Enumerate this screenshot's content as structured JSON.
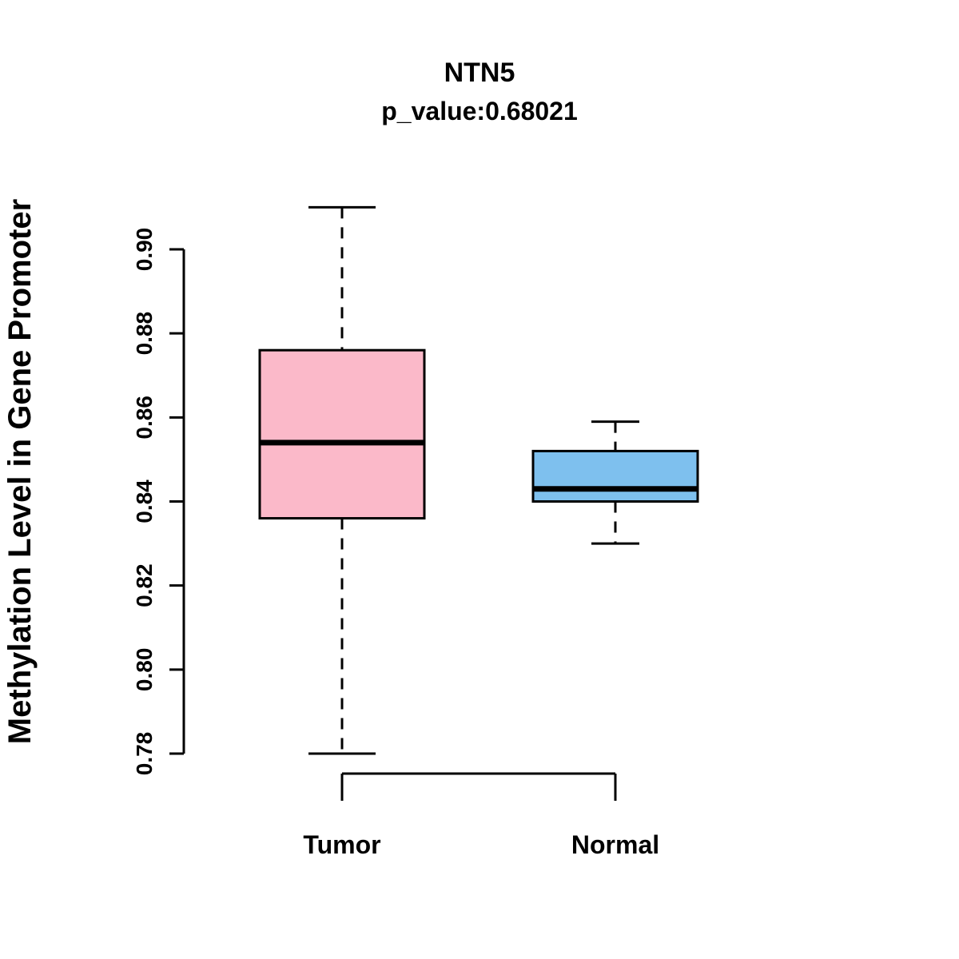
{
  "title": "NTN5",
  "subtitle": "p_value:0.68021",
  "ylabel": "Methylation Level in Gene Promoter",
  "chart_data": {
    "type": "boxplot",
    "title": "NTN5",
    "subtitle": "p_value:0.68021",
    "ylabel": "Methylation Level in Gene Promoter",
    "xlabel": "",
    "categories": [
      "Tumor",
      "Normal"
    ],
    "yticks": [
      0.78,
      0.8,
      0.82,
      0.84,
      0.86,
      0.88,
      0.9
    ],
    "ylim": [
      0.775,
      0.915
    ],
    "grid": false,
    "legend": "none",
    "series": [
      {
        "name": "Tumor",
        "min": 0.78,
        "q1": 0.836,
        "median": 0.854,
        "q3": 0.876,
        "max": 0.91,
        "color": "#FBB9C9"
      },
      {
        "name": "Normal",
        "min": 0.83,
        "q1": 0.84,
        "median": 0.843,
        "q3": 0.852,
        "max": 0.859,
        "color": "#7EC0EE"
      }
    ],
    "colors": {
      "box_stroke": "#000000",
      "median_stroke": "#000000",
      "whisker_stroke": "#000000",
      "axis_stroke": "#000000"
    }
  }
}
